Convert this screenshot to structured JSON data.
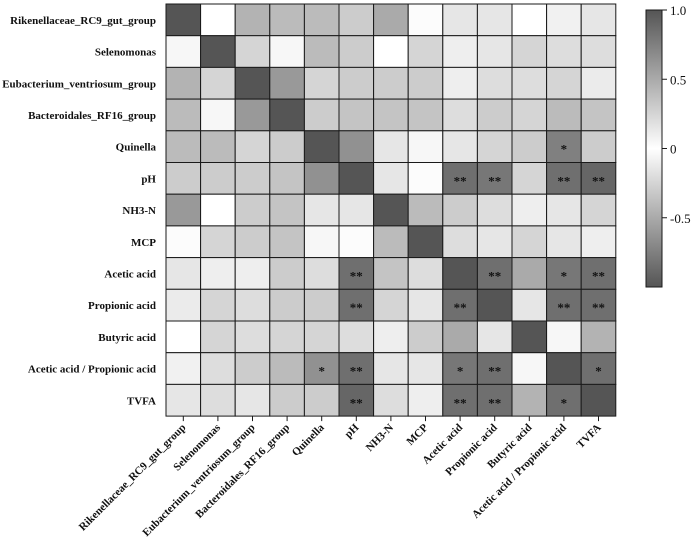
{
  "chart_data": {
    "type": "heatmap",
    "title": "",
    "rows": [
      "Rikenellaceae_RC9_gut_group",
      "Selenomonas",
      "Eubacterium_ventriosum_group",
      "Bacteroidales_RF16_group",
      "Quinella",
      "pH",
      "NH3-N",
      "MCP",
      "Acetic acid",
      "Propionic acid",
      "Butyric acid",
      "Acetic acid / Propionic acid",
      "TVFA"
    ],
    "columns": [
      "Rikenellaceae_RC9_gut_group",
      "Selenomonas",
      "Eubacterium_ventriosum_group",
      "Bacteroidales_RF16_group",
      "Quinella",
      "pH",
      "NH3-N",
      "MCP",
      "Acetic acid",
      "Propionic acid",
      "Butyric acid",
      "Acetic acid / Propionic acid",
      "TVFA"
    ],
    "values": [
      [
        1.0,
        0.0,
        0.45,
        0.4,
        0.4,
        0.3,
        0.5,
        0.02,
        0.15,
        0.15,
        0.0,
        0.08,
        0.15
      ],
      [
        0.05,
        1.0,
        0.25,
        0.05,
        0.4,
        0.3,
        0.0,
        0.25,
        0.1,
        0.15,
        0.25,
        0.2,
        0.2
      ],
      [
        0.45,
        0.25,
        1.0,
        0.6,
        0.25,
        0.3,
        0.3,
        0.3,
        0.1,
        0.2,
        0.2,
        0.25,
        0.12
      ],
      [
        0.4,
        0.05,
        0.6,
        1.0,
        0.3,
        0.35,
        0.35,
        0.35,
        0.2,
        0.3,
        0.25,
        0.4,
        0.35
      ],
      [
        0.4,
        0.4,
        0.25,
        0.3,
        1.0,
        0.65,
        0.15,
        0.05,
        0.15,
        0.25,
        0.3,
        0.75,
        0.3
      ],
      [
        0.3,
        0.3,
        0.3,
        0.35,
        0.65,
        1.0,
        0.15,
        0.02,
        0.85,
        0.8,
        0.25,
        0.85,
        0.9
      ],
      [
        0.6,
        0.0,
        0.3,
        0.35,
        0.15,
        0.15,
        1.0,
        0.4,
        0.3,
        0.2,
        0.1,
        0.15,
        0.25
      ],
      [
        0.02,
        0.25,
        0.3,
        0.35,
        0.05,
        0.02,
        0.4,
        1.0,
        0.2,
        0.15,
        0.25,
        0.15,
        0.1
      ],
      [
        0.15,
        0.1,
        0.1,
        0.3,
        0.2,
        0.85,
        0.35,
        0.2,
        1.0,
        0.85,
        0.5,
        0.8,
        0.85
      ],
      [
        0.12,
        0.25,
        0.2,
        0.3,
        0.3,
        0.85,
        0.25,
        0.15,
        0.85,
        1.0,
        0.15,
        0.85,
        0.85
      ],
      [
        0.0,
        0.25,
        0.2,
        0.25,
        0.25,
        0.2,
        0.1,
        0.3,
        0.5,
        0.15,
        1.0,
        0.05,
        0.45
      ],
      [
        0.08,
        0.2,
        0.3,
        0.4,
        0.65,
        0.85,
        0.15,
        0.15,
        0.8,
        0.85,
        0.05,
        1.0,
        0.85
      ],
      [
        0.15,
        0.2,
        0.15,
        0.3,
        0.3,
        0.9,
        0.2,
        0.1,
        0.85,
        0.85,
        0.45,
        0.85,
        1.0
      ]
    ],
    "significance": [
      [
        "",
        "",
        "",
        "",
        "",
        "",
        "",
        "",
        "",
        "",
        "",
        "",
        ""
      ],
      [
        "",
        "",
        "",
        "",
        "",
        "",
        "",
        "",
        "",
        "",
        "",
        "",
        ""
      ],
      [
        "",
        "",
        "",
        "",
        "",
        "",
        "",
        "",
        "",
        "",
        "",
        "",
        ""
      ],
      [
        "",
        "",
        "",
        "",
        "",
        "",
        "",
        "",
        "",
        "",
        "",
        "",
        ""
      ],
      [
        "",
        "",
        "",
        "",
        "",
        "",
        "",
        "",
        "",
        "",
        "",
        "*",
        ""
      ],
      [
        "",
        "",
        "",
        "",
        "",
        "",
        "",
        "",
        "**",
        "**",
        "",
        "**",
        "**"
      ],
      [
        "",
        "",
        "",
        "",
        "",
        "",
        "",
        "",
        "",
        "",
        "",
        "",
        ""
      ],
      [
        "",
        "",
        "",
        "",
        "",
        "",
        "",
        "",
        "",
        "",
        "",
        "",
        ""
      ],
      [
        "",
        "",
        "",
        "",
        "",
        "**",
        "",
        "",
        "",
        "**",
        "",
        "*",
        "**"
      ],
      [
        "",
        "",
        "",
        "",
        "",
        "**",
        "",
        "",
        "**",
        "",
        "",
        "**",
        "**"
      ],
      [
        "",
        "",
        "",
        "",
        "",
        "",
        "",
        "",
        "",
        "",
        "",
        "",
        ""
      ],
      [
        "",
        "",
        "",
        "",
        "*",
        "**",
        "",
        "",
        "*",
        "**",
        "",
        "",
        "*"
      ],
      [
        "",
        "",
        "",
        "",
        "",
        "**",
        "",
        "",
        "**",
        "**",
        "",
        "*",
        ""
      ]
    ],
    "colorbar": {
      "range": [
        -1.0,
        1.0
      ],
      "ticks": [
        1.0,
        0.5,
        0,
        -0.5
      ],
      "tick_labels": [
        "1.0",
        "0.5",
        "0",
        "-0.5"
      ],
      "color_at_minus_1": "#555555",
      "color_at_0": "#ffffff",
      "color_at_plus_1": "#555555"
    },
    "grid": true,
    "legend": "right"
  }
}
